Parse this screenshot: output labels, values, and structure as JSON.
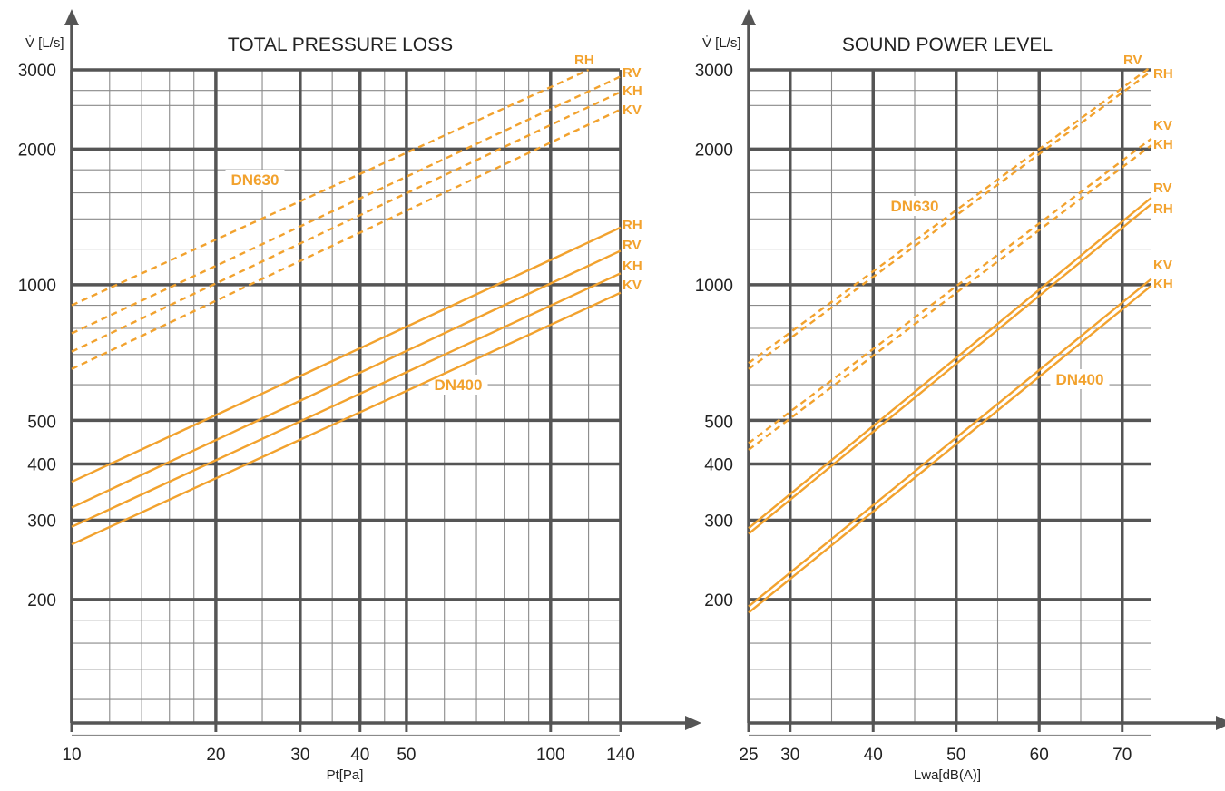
{
  "colors": {
    "curve": "#F2A22E",
    "grid_major": "#555555",
    "grid_minor": "#8A8A8A",
    "axis": "#555555",
    "text": "#222222"
  },
  "chart_data": [
    {
      "type": "line",
      "title": "TOTAL PRESSURE LOSS",
      "ylabel": "V̇ [L/s]",
      "xlabel": "Pt[Pa]",
      "xscale": "log",
      "yscale": "log",
      "xlim": [
        10,
        140
      ],
      "ylim": [
        100,
        3000
      ],
      "x_tick_labels": [
        "10",
        "20",
        "30",
        "40",
        "50",
        "100",
        "140"
      ],
      "y_tick_labels": [
        "3000",
        "2000",
        "1000",
        "500",
        "400",
        "300",
        "200"
      ],
      "grid": true,
      "groups": [
        {
          "name": "DN630",
          "style": "dashed",
          "series": [
            {
              "name": "RH",
              "x": [
                10,
                120
              ],
              "y": [
                900,
                3000
              ]
            },
            {
              "name": "RV",
              "x": [
                10,
                140
              ],
              "y": [
                780,
                2900
              ]
            },
            {
              "name": "KH",
              "x": [
                10,
                140
              ],
              "y": [
                710,
                2680
              ]
            },
            {
              "name": "KV",
              "x": [
                10,
                140
              ],
              "y": [
                650,
                2450
              ]
            }
          ]
        },
        {
          "name": "DN400",
          "style": "solid",
          "series": [
            {
              "name": "RH",
              "x": [
                10,
                140
              ],
              "y": [
                365,
                1340
              ]
            },
            {
              "name": "RV",
              "x": [
                10,
                140
              ],
              "y": [
                320,
                1190
              ]
            },
            {
              "name": "KH",
              "x": [
                10,
                140
              ],
              "y": [
                290,
                1060
              ]
            },
            {
              "name": "KV",
              "x": [
                10,
                140
              ],
              "y": [
                265,
                960
              ]
            }
          ]
        }
      ]
    },
    {
      "type": "line",
      "title": "SOUND POWER LEVEL",
      "ylabel": "V̇ [L/s]",
      "xlabel": "Lwa[dB(A)]",
      "xscale": "linear",
      "yscale": "log",
      "xlim": [
        25,
        73.5
      ],
      "ylim": [
        100,
        3000
      ],
      "x_tick_labels": [
        "25",
        "30",
        "40",
        "50",
        "60",
        "70"
      ],
      "y_tick_labels": [
        "3000",
        "2000",
        "1000",
        "500",
        "400",
        "300",
        "200"
      ],
      "grid": true,
      "groups": [
        {
          "name": "DN630",
          "style": "dashed",
          "series": [
            {
              "name": "RV",
              "x": [
                25,
                73.5
              ],
              "y": [
                670,
                3050
              ]
            },
            {
              "name": "RH",
              "x": [
                25,
                73.5
              ],
              "y": [
                650,
                2980
              ]
            },
            {
              "name": "KV",
              "x": [
                25,
                73.5
              ],
              "y": [
                445,
                2110
              ]
            },
            {
              "name": "KH",
              "x": [
                25,
                73.5
              ],
              "y": [
                430,
                2040
              ]
            }
          ]
        },
        {
          "name": "DN400",
          "style": "solid",
          "series": [
            {
              "name": "RV",
              "x": [
                25,
                73.5
              ],
              "y": [
                288,
                1560
              ]
            },
            {
              "name": "RH",
              "x": [
                25,
                73.5
              ],
              "y": [
                280,
                1510
              ]
            },
            {
              "name": "KV",
              "x": [
                25,
                73.5
              ],
              "y": [
                193,
                1030
              ]
            },
            {
              "name": "KH",
              "x": [
                25,
                73.5
              ],
              "y": [
                187,
                995
              ]
            }
          ]
        }
      ]
    }
  ]
}
